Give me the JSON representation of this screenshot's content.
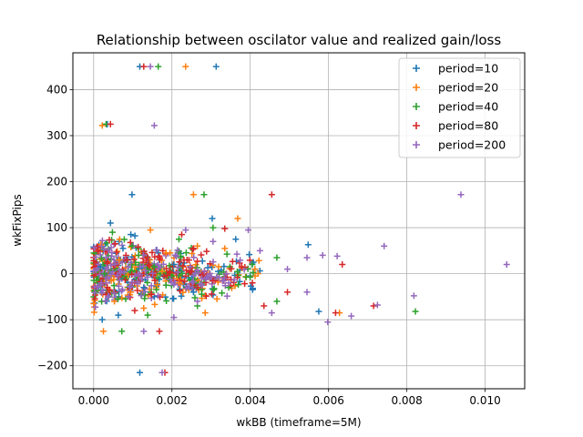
{
  "chart_data": {
    "type": "scatter",
    "title": "Relationship between oscilator value and realized gain/loss",
    "xlabel": "wkBB (timeframe=5M)",
    "ylabel": "wkFixPips",
    "xlim": [
      -0.00053,
      0.01101
    ],
    "ylim": [
      -250,
      480
    ],
    "xticks": [
      0.0,
      0.002,
      0.004,
      0.006,
      0.008,
      0.01
    ],
    "xtick_labels": [
      "0.000",
      "0.002",
      "0.004",
      "0.006",
      "0.008",
      "0.010"
    ],
    "yticks": [
      -200,
      -100,
      0,
      100,
      200,
      300,
      400
    ],
    "ytick_labels": [
      "−200",
      "−100",
      "0",
      "100",
      "200",
      "300",
      "400"
    ],
    "grid": true,
    "legend_position": "top-right",
    "marker": "+",
    "series": [
      {
        "name": "period=10",
        "color": "#1f77b4",
        "points": [
          [
            0.00118,
            450
          ],
          [
            0.00313,
            450
          ],
          [
            0.00035,
            325
          ],
          [
            0.00098,
            172
          ],
          [
            0.00118,
            -215
          ],
          [
            0.00548,
            63
          ],
          [
            0.00575,
            -82
          ],
          [
            0.00363,
            75
          ],
          [
            0.00303,
            120
          ],
          [
            0.00043,
            110
          ],
          [
            0.00022,
            -100
          ],
          [
            0.00063,
            -90
          ],
          [
            0.00408,
            25
          ],
          [
            0.00155,
            -50
          ],
          [
            0.00075,
            55
          ],
          [
            0.00205,
            20
          ],
          [
            0.00128,
            -30
          ],
          [
            0.00095,
            85
          ],
          [
            0.00255,
            -40
          ],
          [
            0.00018,
            15
          ]
        ]
      },
      {
        "name": "period=20",
        "color": "#ff7f0e",
        "points": [
          [
            0.00235,
            450
          ],
          [
            0.00022,
            322
          ],
          [
            0.00255,
            172
          ],
          [
            0.00368,
            120
          ],
          [
            0.00265,
            60
          ],
          [
            0.00025,
            -125
          ],
          [
            0.00053,
            -60
          ],
          [
            0.00628,
            -85
          ],
          [
            0.00128,
            -75
          ],
          [
            0.00185,
            45
          ],
          [
            0.00095,
            -40
          ],
          [
            0.00218,
            -20
          ],
          [
            0.00065,
            30
          ],
          [
            0.00335,
            55
          ],
          [
            0.00145,
            95
          ],
          [
            0.00285,
            -85
          ],
          [
            0.00412,
            10
          ],
          [
            0.00045,
            -15
          ],
          [
            0.00175,
            5
          ],
          [
            0.00315,
            -55
          ]
        ]
      },
      {
        "name": "period=40",
        "color": "#2ca02c",
        "points": [
          [
            0.00165,
            450
          ],
          [
            0.00032,
            325
          ],
          [
            0.00282,
            172
          ],
          [
            0.00305,
            100
          ],
          [
            0.00405,
            20
          ],
          [
            0.00468,
            35
          ],
          [
            0.00468,
            -60
          ],
          [
            0.00822,
            -82
          ],
          [
            0.00072,
            -125
          ],
          [
            0.00098,
            60
          ],
          [
            0.00138,
            -90
          ],
          [
            0.00218,
            75
          ],
          [
            0.00048,
            90
          ],
          [
            0.00265,
            -70
          ],
          [
            0.00185,
            -25
          ],
          [
            0.00115,
            40
          ],
          [
            0.00345,
            -30
          ],
          [
            0.00062,
            -55
          ],
          [
            0.00155,
            15
          ],
          [
            0.00028,
            0
          ]
        ]
      },
      {
        "name": "period=80",
        "color": "#d62728",
        "points": [
          [
            0.00128,
            450
          ],
          [
            0.00043,
            325
          ],
          [
            0.00455,
            172
          ],
          [
            0.00335,
            98
          ],
          [
            0.00635,
            20
          ],
          [
            0.00715,
            -70
          ],
          [
            0.00618,
            -85
          ],
          [
            0.00168,
            -125
          ],
          [
            0.00182,
            -215
          ],
          [
            0.00225,
            85
          ],
          [
            0.00495,
            -40
          ],
          [
            0.00055,
            65
          ],
          [
            0.00105,
            -80
          ],
          [
            0.00305,
            -15
          ],
          [
            0.00085,
            30
          ],
          [
            0.00255,
            55
          ],
          [
            0.00148,
            -45
          ],
          [
            0.00378,
            15
          ],
          [
            0.00035,
            -30
          ],
          [
            0.00195,
            5
          ],
          [
            0.00435,
            -70
          ]
        ]
      },
      {
        "name": "period=200",
        "color": "#9467bd",
        "points": [
          [
            0.00145,
            450
          ],
          [
            0.00155,
            322
          ],
          [
            0.00938,
            172
          ],
          [
            0.01055,
            20
          ],
          [
            0.00742,
            60
          ],
          [
            0.00818,
            -48
          ],
          [
            0.00622,
            38
          ],
          [
            0.00545,
            35
          ],
          [
            0.00598,
            -105
          ],
          [
            0.00658,
            -92
          ],
          [
            0.00725,
            -68
          ],
          [
            0.00235,
            95
          ],
          [
            0.00395,
            95
          ],
          [
            0.00425,
            50
          ],
          [
            0.00495,
            10
          ],
          [
            0.00175,
            -215
          ],
          [
            0.00128,
            -125
          ],
          [
            0.00455,
            -85
          ],
          [
            0.00305,
            70
          ],
          [
            0.00265,
            -60
          ],
          [
            0.00345,
            -20
          ],
          [
            0.00585,
            40
          ],
          [
            0.00545,
            -40
          ],
          [
            0.00205,
            -95
          ]
        ]
      }
    ],
    "dense_cluster": {
      "colors": [
        "#1f77b4",
        "#ff7f0e",
        "#2ca02c",
        "#d62728",
        "#9467bd"
      ],
      "x_range": [
        0.0,
        0.0045
      ],
      "y_range": [
        -100,
        100
      ],
      "count_per_series": 140
    }
  }
}
